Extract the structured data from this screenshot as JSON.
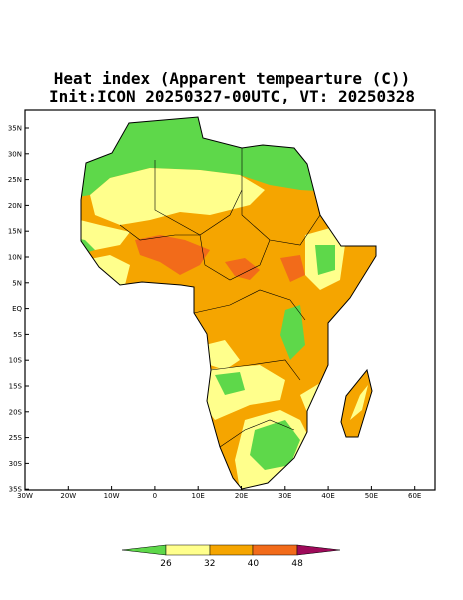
{
  "header": {
    "title": "Heat index (Apparent tempearture (C))",
    "subtitle": "Init:ICON 20250327-00UTC, VT: 20250328"
  },
  "map": {
    "lat_labels": [
      "35N",
      "30N",
      "25N",
      "20N",
      "15N",
      "10N",
      "5N",
      "EQ",
      "5S",
      "10S",
      "15S",
      "20S",
      "25S",
      "30S",
      "35S"
    ],
    "lon_labels": [
      "30W",
      "20W",
      "10W",
      "0",
      "10E",
      "20E",
      "30E",
      "40E",
      "50E",
      "60E"
    ]
  },
  "colorbar": {
    "labels": [
      26,
      32,
      40,
      48
    ]
  }
}
